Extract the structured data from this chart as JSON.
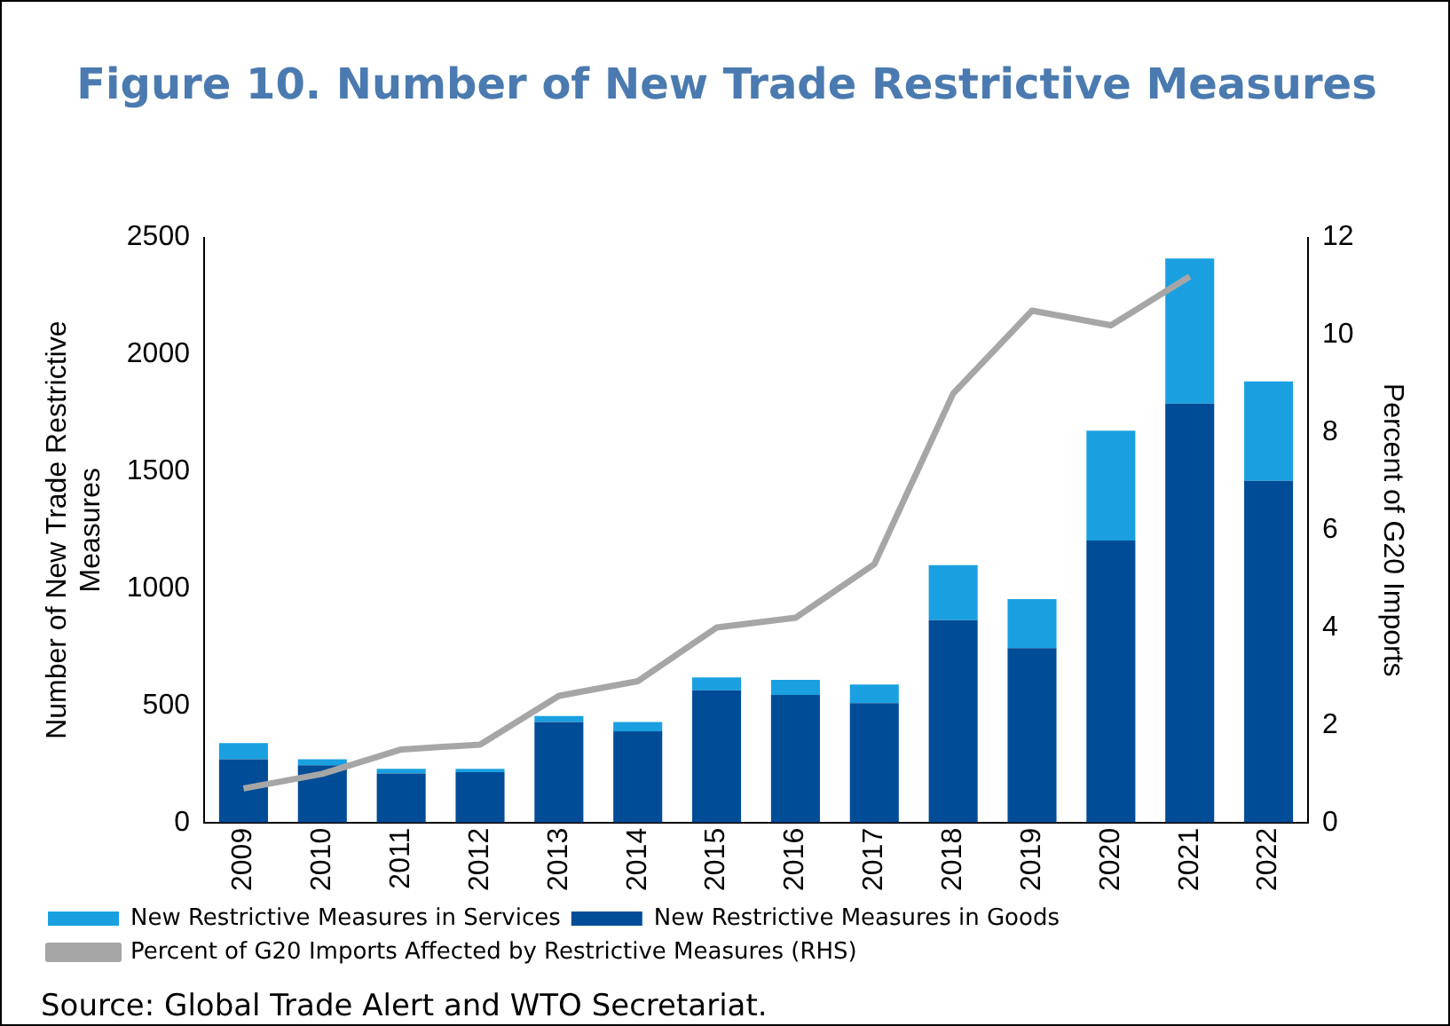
{
  "chart_data": {
    "type": "bar",
    "stacked": true,
    "title": "Figure 10. Number of New Trade Restrictive Measures",
    "ylabel": "Number of New Trade Restrictive Measures",
    "y2label": "Percent of G20 Imports",
    "categories": [
      "2009",
      "2010",
      "2011",
      "2012",
      "2013",
      "2014",
      "2015",
      "2016",
      "2017",
      "2018",
      "2019",
      "2020",
      "2021",
      "2022"
    ],
    "series": [
      {
        "name": "New Restrictive Measures in Goods",
        "color": "#004c97",
        "values": [
          270,
          245,
          210,
          215,
          430,
          390,
          565,
          545,
          510,
          865,
          745,
          1205,
          1790,
          1460
        ]
      },
      {
        "name": "New Restrictive Measures in Services",
        "color": "#1aa0e0",
        "values": [
          70,
          25,
          20,
          15,
          25,
          40,
          55,
          65,
          80,
          235,
          210,
          470,
          620,
          425
        ]
      },
      {
        "name": "Percent of G20 Imports Affected by Restrictive Measures (RHS)",
        "type": "line",
        "axis": "y2",
        "color": "#a6a6a6",
        "values": [
          0.7,
          1.0,
          1.5,
          1.6,
          2.6,
          2.9,
          4.0,
          4.2,
          5.3,
          8.8,
          10.5,
          10.2,
          11.2,
          null
        ]
      }
    ],
    "ylim": [
      0,
      2500
    ],
    "yticks": [
      0,
      500,
      1000,
      1500,
      2000,
      2500
    ],
    "y2lim": [
      0,
      12
    ],
    "y2ticks": [
      0,
      2,
      4,
      6,
      8,
      10,
      12
    ],
    "grid": false,
    "legend": "bottom",
    "marker": "none",
    "annotations": [
      "Source: Global Trade Alert and WTO Secretariat."
    ]
  }
}
